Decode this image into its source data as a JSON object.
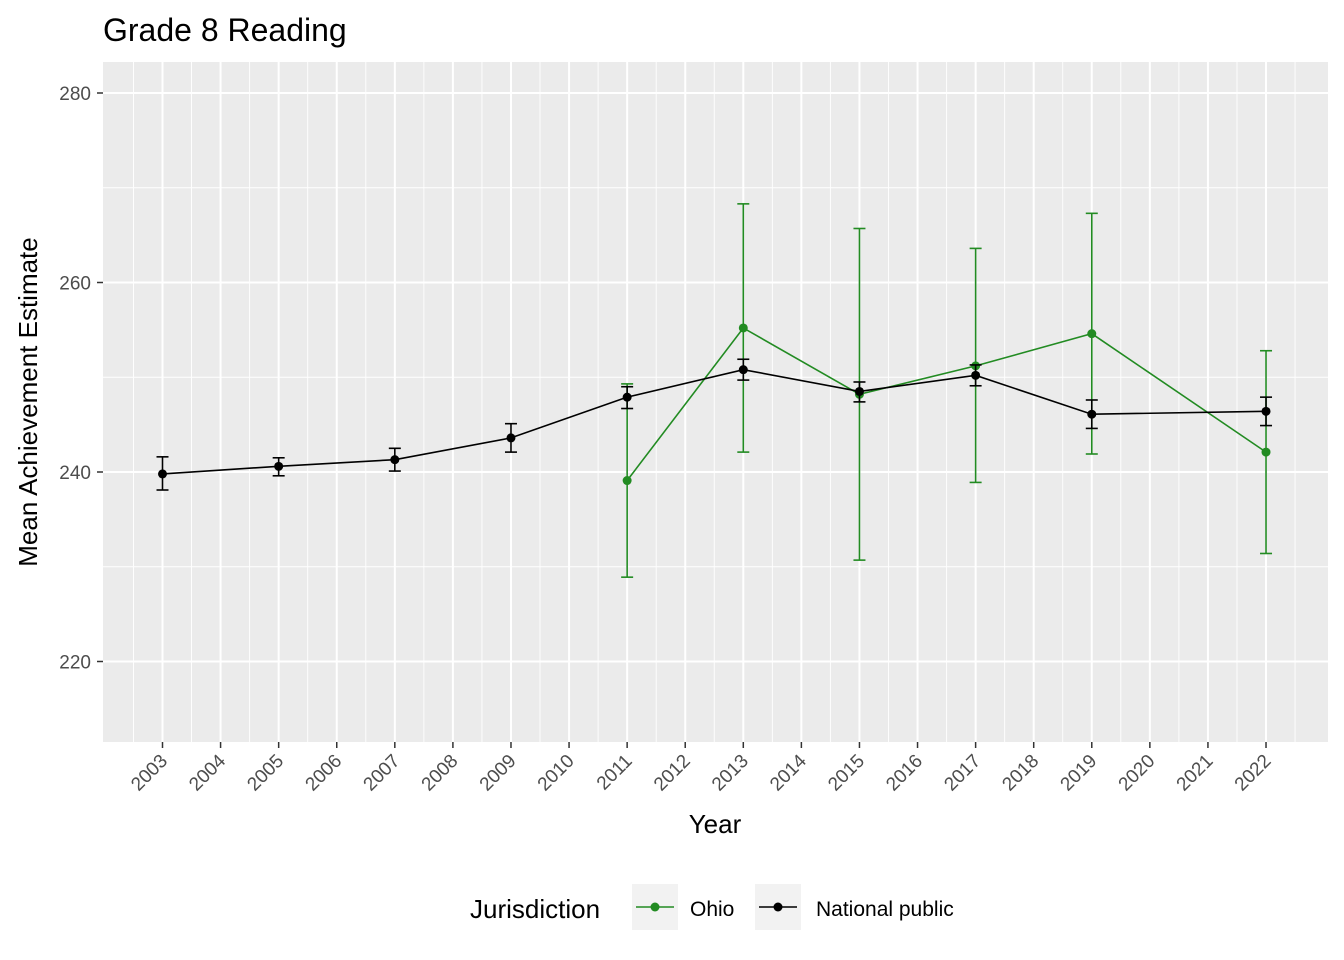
{
  "chart_data": {
    "type": "line",
    "title": "Grade 8 Reading",
    "xlabel": "Year",
    "ylabel": "Mean Achievement Estimate",
    "x_ticks": [
      "2003",
      "2004",
      "2005",
      "2006",
      "2007",
      "2008",
      "2009",
      "2010",
      "2011",
      "2012",
      "2013",
      "2014",
      "2015",
      "2016",
      "2017",
      "2018",
      "2019",
      "2020",
      "2021",
      "2022"
    ],
    "y_ticks": [
      220,
      240,
      260,
      280
    ],
    "ylim": [
      212,
      283
    ],
    "grid": true,
    "legend": {
      "title": "Jurisdiction",
      "position": "bottom",
      "entries": [
        "Ohio",
        "National public"
      ]
    },
    "series": [
      {
        "name": "Ohio",
        "color": "#228b22",
        "points": [
          {
            "x": 2011,
            "y": 239.1,
            "lo": 228.9,
            "hi": 249.3
          },
          {
            "x": 2013,
            "y": 255.2,
            "lo": 242.1,
            "hi": 268.3
          },
          {
            "x": 2015,
            "y": 248.2,
            "lo": 230.7,
            "hi": 265.7
          },
          {
            "x": 2017,
            "y": 251.2,
            "lo": 238.9,
            "hi": 263.6
          },
          {
            "x": 2019,
            "y": 254.6,
            "lo": 241.9,
            "hi": 267.3
          },
          {
            "x": 2022,
            "y": 242.1,
            "lo": 231.4,
            "hi": 252.8
          }
        ]
      },
      {
        "name": "National public",
        "color": "#000000",
        "points": [
          {
            "x": 2003,
            "y": 239.8,
            "lo": 238.1,
            "hi": 241.6
          },
          {
            "x": 2005,
            "y": 240.6,
            "lo": 239.6,
            "hi": 241.5
          },
          {
            "x": 2007,
            "y": 241.3,
            "lo": 240.1,
            "hi": 242.5
          },
          {
            "x": 2009,
            "y": 243.6,
            "lo": 242.1,
            "hi": 245.1
          },
          {
            "x": 2011,
            "y": 247.9,
            "lo": 246.7,
            "hi": 249.0
          },
          {
            "x": 2013,
            "y": 250.8,
            "lo": 249.7,
            "hi": 251.9
          },
          {
            "x": 2015,
            "y": 248.5,
            "lo": 247.4,
            "hi": 249.5
          },
          {
            "x": 2017,
            "y": 250.2,
            "lo": 249.1,
            "hi": 251.3
          },
          {
            "x": 2019,
            "y": 246.1,
            "lo": 244.6,
            "hi": 247.6
          },
          {
            "x": 2022,
            "y": 246.4,
            "lo": 244.9,
            "hi": 247.9
          }
        ]
      }
    ]
  }
}
